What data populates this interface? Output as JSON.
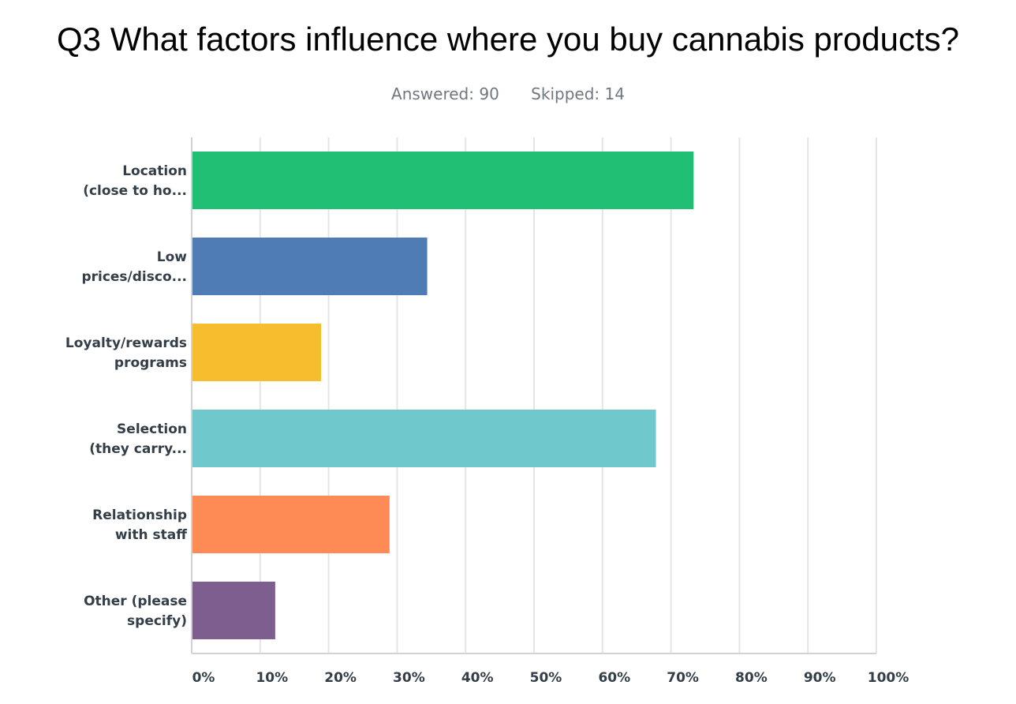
{
  "header": {
    "title": "Q3 What factors influence where you buy cannabis products?",
    "answered": "Answered: 90",
    "skipped": "Skipped: 14"
  },
  "chart_data": {
    "type": "bar",
    "orientation": "horizontal",
    "categories": [
      [
        "Location",
        "(close to ho..."
      ],
      [
        "Low",
        "prices/disco..."
      ],
      [
        "Loyalty/rewards",
        "programs"
      ],
      [
        "Selection",
        "(they carry..."
      ],
      [
        "Relationship",
        "with staff"
      ],
      [
        "Other (please",
        "specify)"
      ]
    ],
    "values": [
      73.3,
      34.4,
      18.9,
      67.8,
      28.9,
      12.2
    ],
    "colors": [
      "#21bf73",
      "#507cb6",
      "#f6bd2e",
      "#6fc8cb",
      "#fe8b56",
      "#7d5e8e"
    ],
    "xlim": [
      0,
      100
    ],
    "xticks": [
      "0%",
      "10%",
      "20%",
      "30%",
      "40%",
      "50%",
      "60%",
      "70%",
      "80%",
      "90%",
      "100%"
    ],
    "grid": true
  }
}
